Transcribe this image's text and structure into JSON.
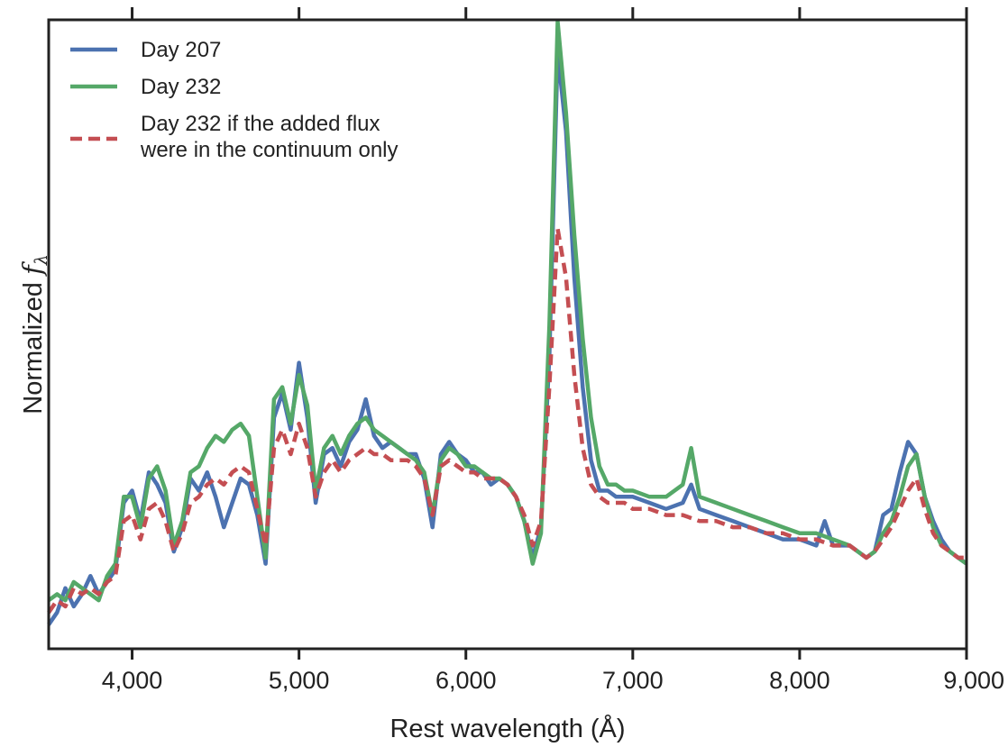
{
  "chart_data": {
    "type": "line",
    "title": "",
    "xlabel": "Rest wavelength (Å)",
    "ylabel_text": "Normalized ",
    "ylabel_symbol": "f",
    "ylabel_subscript": "λ",
    "xlim": [
      3500,
      9000
    ],
    "ylim": [
      0,
      1
    ],
    "x_ticks": [
      4000,
      5000,
      6000,
      7000,
      8000,
      9000
    ],
    "x_tick_labels": [
      "4,000",
      "5,000",
      "6,000",
      "7,000",
      "8,000",
      "9,000"
    ],
    "y_ticks_shown": false,
    "grid": false,
    "legend_position": "top-left",
    "series": [
      {
        "name": "Day 207",
        "color": "#4c72b0",
        "style": "solid",
        "points": [
          [
            3500,
            0.01
          ],
          [
            3550,
            0.03
          ],
          [
            3600,
            0.07
          ],
          [
            3650,
            0.04
          ],
          [
            3700,
            0.06
          ],
          [
            3750,
            0.09
          ],
          [
            3800,
            0.06
          ],
          [
            3850,
            0.08
          ],
          [
            3900,
            0.1
          ],
          [
            3950,
            0.21
          ],
          [
            4000,
            0.23
          ],
          [
            4050,
            0.18
          ],
          [
            4100,
            0.26
          ],
          [
            4150,
            0.24
          ],
          [
            4200,
            0.21
          ],
          [
            4250,
            0.13
          ],
          [
            4300,
            0.17
          ],
          [
            4350,
            0.25
          ],
          [
            4400,
            0.23
          ],
          [
            4450,
            0.26
          ],
          [
            4500,
            0.22
          ],
          [
            4550,
            0.17
          ],
          [
            4600,
            0.21
          ],
          [
            4650,
            0.25
          ],
          [
            4700,
            0.24
          ],
          [
            4750,
            0.19
          ],
          [
            4800,
            0.11
          ],
          [
            4850,
            0.35
          ],
          [
            4900,
            0.39
          ],
          [
            4950,
            0.33
          ],
          [
            5000,
            0.44
          ],
          [
            5050,
            0.35
          ],
          [
            5100,
            0.21
          ],
          [
            5150,
            0.29
          ],
          [
            5200,
            0.3
          ],
          [
            5250,
            0.27
          ],
          [
            5300,
            0.31
          ],
          [
            5350,
            0.33
          ],
          [
            5400,
            0.38
          ],
          [
            5450,
            0.32
          ],
          [
            5500,
            0.3
          ],
          [
            5550,
            0.31
          ],
          [
            5600,
            0.3
          ],
          [
            5650,
            0.29
          ],
          [
            5700,
            0.29
          ],
          [
            5750,
            0.25
          ],
          [
            5800,
            0.17
          ],
          [
            5850,
            0.29
          ],
          [
            5900,
            0.31
          ],
          [
            5950,
            0.29
          ],
          [
            6000,
            0.28
          ],
          [
            6050,
            0.26
          ],
          [
            6100,
            0.26
          ],
          [
            6150,
            0.24
          ],
          [
            6200,
            0.25
          ],
          [
            6250,
            0.24
          ],
          [
            6300,
            0.22
          ],
          [
            6350,
            0.18
          ],
          [
            6400,
            0.12
          ],
          [
            6450,
            0.17
          ],
          [
            6500,
            0.45
          ],
          [
            6550,
            0.95
          ],
          [
            6600,
            0.82
          ],
          [
            6650,
            0.58
          ],
          [
            6700,
            0.4
          ],
          [
            6750,
            0.28
          ],
          [
            6800,
            0.23
          ],
          [
            6850,
            0.23
          ],
          [
            6900,
            0.22
          ],
          [
            6950,
            0.22
          ],
          [
            7000,
            0.22
          ],
          [
            7100,
            0.21
          ],
          [
            7200,
            0.2
          ],
          [
            7300,
            0.21
          ],
          [
            7350,
            0.24
          ],
          [
            7400,
            0.2
          ],
          [
            7500,
            0.19
          ],
          [
            7600,
            0.18
          ],
          [
            7700,
            0.17
          ],
          [
            7800,
            0.16
          ],
          [
            7900,
            0.15
          ],
          [
            8000,
            0.15
          ],
          [
            8100,
            0.14
          ],
          [
            8150,
            0.18
          ],
          [
            8200,
            0.14
          ],
          [
            8300,
            0.14
          ],
          [
            8400,
            0.12
          ],
          [
            8450,
            0.13
          ],
          [
            8500,
            0.19
          ],
          [
            8550,
            0.2
          ],
          [
            8600,
            0.26
          ],
          [
            8650,
            0.31
          ],
          [
            8700,
            0.29
          ],
          [
            8750,
            0.22
          ],
          [
            8800,
            0.18
          ],
          [
            8850,
            0.15
          ],
          [
            8900,
            0.13
          ],
          [
            8950,
            0.12
          ],
          [
            9000,
            0.11
          ]
        ]
      },
      {
        "name": "Day 232",
        "color": "#55a868",
        "style": "solid",
        "points": [
          [
            3500,
            0.05
          ],
          [
            3550,
            0.06
          ],
          [
            3600,
            0.05
          ],
          [
            3650,
            0.08
          ],
          [
            3700,
            0.07
          ],
          [
            3750,
            0.06
          ],
          [
            3800,
            0.05
          ],
          [
            3850,
            0.09
          ],
          [
            3900,
            0.11
          ],
          [
            3950,
            0.22
          ],
          [
            4000,
            0.22
          ],
          [
            4050,
            0.17
          ],
          [
            4100,
            0.25
          ],
          [
            4150,
            0.27
          ],
          [
            4200,
            0.23
          ],
          [
            4250,
            0.14
          ],
          [
            4300,
            0.18
          ],
          [
            4350,
            0.26
          ],
          [
            4400,
            0.27
          ],
          [
            4450,
            0.3
          ],
          [
            4500,
            0.32
          ],
          [
            4550,
            0.31
          ],
          [
            4600,
            0.33
          ],
          [
            4650,
            0.34
          ],
          [
            4700,
            0.32
          ],
          [
            4750,
            0.22
          ],
          [
            4800,
            0.12
          ],
          [
            4850,
            0.38
          ],
          [
            4900,
            0.4
          ],
          [
            4950,
            0.34
          ],
          [
            5000,
            0.42
          ],
          [
            5050,
            0.37
          ],
          [
            5100,
            0.23
          ],
          [
            5150,
            0.3
          ],
          [
            5200,
            0.32
          ],
          [
            5250,
            0.29
          ],
          [
            5300,
            0.32
          ],
          [
            5350,
            0.34
          ],
          [
            5400,
            0.35
          ],
          [
            5450,
            0.33
          ],
          [
            5500,
            0.32
          ],
          [
            5550,
            0.31
          ],
          [
            5600,
            0.3
          ],
          [
            5650,
            0.29
          ],
          [
            5700,
            0.28
          ],
          [
            5750,
            0.26
          ],
          [
            5800,
            0.19
          ],
          [
            5850,
            0.28
          ],
          [
            5900,
            0.3
          ],
          [
            5950,
            0.29
          ],
          [
            6000,
            0.27
          ],
          [
            6050,
            0.27
          ],
          [
            6100,
            0.26
          ],
          [
            6150,
            0.25
          ],
          [
            6200,
            0.25
          ],
          [
            6250,
            0.24
          ],
          [
            6300,
            0.22
          ],
          [
            6350,
            0.18
          ],
          [
            6400,
            0.11
          ],
          [
            6450,
            0.16
          ],
          [
            6500,
            0.5
          ],
          [
            6550,
            1.0
          ],
          [
            6600,
            0.85
          ],
          [
            6650,
            0.65
          ],
          [
            6700,
            0.48
          ],
          [
            6750,
            0.35
          ],
          [
            6800,
            0.27
          ],
          [
            6850,
            0.24
          ],
          [
            6900,
            0.24
          ],
          [
            6950,
            0.23
          ],
          [
            7000,
            0.23
          ],
          [
            7100,
            0.22
          ],
          [
            7200,
            0.22
          ],
          [
            7300,
            0.24
          ],
          [
            7350,
            0.3
          ],
          [
            7400,
            0.22
          ],
          [
            7500,
            0.21
          ],
          [
            7600,
            0.2
          ],
          [
            7700,
            0.19
          ],
          [
            7800,
            0.18
          ],
          [
            7900,
            0.17
          ],
          [
            8000,
            0.16
          ],
          [
            8100,
            0.16
          ],
          [
            8200,
            0.15
          ],
          [
            8300,
            0.14
          ],
          [
            8400,
            0.12
          ],
          [
            8450,
            0.13
          ],
          [
            8500,
            0.16
          ],
          [
            8550,
            0.18
          ],
          [
            8600,
            0.22
          ],
          [
            8650,
            0.27
          ],
          [
            8700,
            0.29
          ],
          [
            8750,
            0.22
          ],
          [
            8800,
            0.17
          ],
          [
            8850,
            0.14
          ],
          [
            8900,
            0.13
          ],
          [
            8950,
            0.12
          ],
          [
            9000,
            0.11
          ]
        ]
      },
      {
        "name": "Day 232 if the added flux were in the continuum only",
        "legend_lines": [
          "Day 232 if the added flux",
          "were in the continuum only"
        ],
        "color": "#c44e52",
        "style": "dashed",
        "points": [
          [
            3500,
            0.03
          ],
          [
            3550,
            0.05
          ],
          [
            3600,
            0.04
          ],
          [
            3650,
            0.07
          ],
          [
            3700,
            0.06
          ],
          [
            3750,
            0.07
          ],
          [
            3800,
            0.06
          ],
          [
            3850,
            0.08
          ],
          [
            3900,
            0.09
          ],
          [
            3950,
            0.18
          ],
          [
            4000,
            0.19
          ],
          [
            4050,
            0.15
          ],
          [
            4100,
            0.2
          ],
          [
            4150,
            0.21
          ],
          [
            4200,
            0.18
          ],
          [
            4250,
            0.13
          ],
          [
            4300,
            0.16
          ],
          [
            4350,
            0.21
          ],
          [
            4400,
            0.22
          ],
          [
            4450,
            0.24
          ],
          [
            4500,
            0.25
          ],
          [
            4550,
            0.24
          ],
          [
            4600,
            0.26
          ],
          [
            4650,
            0.27
          ],
          [
            4700,
            0.26
          ],
          [
            4750,
            0.2
          ],
          [
            4800,
            0.14
          ],
          [
            4850,
            0.3
          ],
          [
            4900,
            0.33
          ],
          [
            4950,
            0.29
          ],
          [
            5000,
            0.34
          ],
          [
            5050,
            0.3
          ],
          [
            5100,
            0.22
          ],
          [
            5150,
            0.26
          ],
          [
            5200,
            0.28
          ],
          [
            5250,
            0.26
          ],
          [
            5300,
            0.28
          ],
          [
            5350,
            0.29
          ],
          [
            5400,
            0.3
          ],
          [
            5450,
            0.29
          ],
          [
            5500,
            0.29
          ],
          [
            5550,
            0.28
          ],
          [
            5600,
            0.28
          ],
          [
            5650,
            0.28
          ],
          [
            5700,
            0.27
          ],
          [
            5750,
            0.25
          ],
          [
            5800,
            0.19
          ],
          [
            5850,
            0.27
          ],
          [
            5900,
            0.28
          ],
          [
            5950,
            0.27
          ],
          [
            6000,
            0.26
          ],
          [
            6050,
            0.26
          ],
          [
            6100,
            0.25
          ],
          [
            6150,
            0.25
          ],
          [
            6200,
            0.25
          ],
          [
            6250,
            0.24
          ],
          [
            6300,
            0.22
          ],
          [
            6350,
            0.19
          ],
          [
            6400,
            0.14
          ],
          [
            6450,
            0.18
          ],
          [
            6500,
            0.4
          ],
          [
            6550,
            0.66
          ],
          [
            6600,
            0.58
          ],
          [
            6650,
            0.42
          ],
          [
            6700,
            0.3
          ],
          [
            6750,
            0.24
          ],
          [
            6800,
            0.22
          ],
          [
            6850,
            0.21
          ],
          [
            6900,
            0.21
          ],
          [
            6950,
            0.21
          ],
          [
            7000,
            0.2
          ],
          [
            7100,
            0.2
          ],
          [
            7200,
            0.19
          ],
          [
            7300,
            0.19
          ],
          [
            7400,
            0.18
          ],
          [
            7500,
            0.18
          ],
          [
            7600,
            0.17
          ],
          [
            7700,
            0.17
          ],
          [
            7800,
            0.16
          ],
          [
            7900,
            0.16
          ],
          [
            8000,
            0.15
          ],
          [
            8100,
            0.15
          ],
          [
            8200,
            0.14
          ],
          [
            8300,
            0.14
          ],
          [
            8400,
            0.12
          ],
          [
            8450,
            0.13
          ],
          [
            8500,
            0.15
          ],
          [
            8550,
            0.17
          ],
          [
            8600,
            0.2
          ],
          [
            8650,
            0.23
          ],
          [
            8700,
            0.25
          ],
          [
            8750,
            0.2
          ],
          [
            8800,
            0.16
          ],
          [
            8850,
            0.14
          ],
          [
            8900,
            0.13
          ],
          [
            8950,
            0.12
          ],
          [
            9000,
            0.12
          ]
        ]
      }
    ]
  }
}
